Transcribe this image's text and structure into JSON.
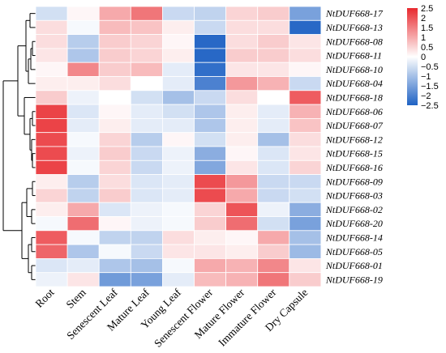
{
  "chart_data": {
    "type": "heatmap",
    "title": "",
    "xlabel": "",
    "ylabel": "",
    "rows": [
      "NtDUF668-17",
      "NtDUF668-13",
      "NtDUF668-08",
      "NtDUF668-11",
      "NtDUF668-10",
      "NtDUF668-04",
      "NtDUF668-18",
      "NtDUF668-06",
      "NtDUF668-07",
      "NtDUF668-12",
      "NtDUF668-15",
      "NtDUF668-16",
      "NtDUF668-09",
      "NtDUF668-03",
      "NtDUF668-02",
      "NtDUF668-20",
      "NtDUF668-14",
      "NtDUF668-05",
      "NtDUF668-01",
      "NtDUF668-19"
    ],
    "columns": [
      "Root",
      "Stem",
      "Senescent Leaf",
      "Mature Leaf",
      "Young Leaf",
      "Senescent Flower",
      "Mature Flower",
      "Immature Flower",
      "Dry Capsule"
    ],
    "values": [
      [
        -0.5,
        0.1,
        1.0,
        1.6,
        -0.6,
        -0.7,
        0.5,
        0.6,
        -1.5
      ],
      [
        0.4,
        -0.1,
        0.8,
        0.7,
        0.2,
        -0.6,
        0.4,
        0.4,
        -2.4
      ],
      [
        0.4,
        -0.8,
        0.6,
        0.5,
        0.1,
        -2.4,
        0.4,
        0.6,
        0.3
      ],
      [
        0.3,
        -0.9,
        0.6,
        0.5,
        0.2,
        -2.4,
        0.6,
        0.6,
        0.4
      ],
      [
        0.1,
        1.4,
        0.6,
        0.8,
        -0.3,
        -2.3,
        0.3,
        0.3,
        0.1
      ],
      [
        0.2,
        0.2,
        0.4,
        0.0,
        -0.3,
        -2.0,
        1.2,
        0.9,
        -0.6
      ],
      [
        0.6,
        -0.2,
        0.0,
        -0.5,
        -1.0,
        -0.6,
        0.4,
        0.0,
        1.9
      ],
      [
        2.2,
        -0.4,
        0.1,
        -0.3,
        -0.5,
        -0.9,
        0.2,
        -0.3,
        0.9
      ],
      [
        2.2,
        -0.3,
        0.2,
        -0.3,
        -0.3,
        -0.9,
        0.2,
        -0.3,
        0.7
      ],
      [
        2.1,
        -0.1,
        0.5,
        -0.8,
        0.1,
        -0.5,
        0.2,
        -1.0,
        0.4
      ],
      [
        2.1,
        -0.2,
        0.6,
        -0.6,
        -0.2,
        -1.3,
        0.1,
        -0.4,
        0.3
      ],
      [
        2.2,
        -0.1,
        0.5,
        -0.6,
        -0.2,
        -1.4,
        0.3,
        -0.4,
        0.5
      ],
      [
        0.2,
        -0.8,
        0.4,
        -0.4,
        -0.3,
        2.1,
        1.2,
        -0.6,
        -0.6
      ],
      [
        0.5,
        -0.7,
        0.6,
        -0.4,
        -0.3,
        2.1,
        1.0,
        -0.6,
        -0.5
      ],
      [
        0.2,
        1.0,
        -0.4,
        -0.2,
        -0.1,
        0.5,
        2.0,
        -0.2,
        -1.3
      ],
      [
        -0.1,
        1.7,
        0.1,
        -0.2,
        -0.1,
        0.6,
        1.7,
        -0.5,
        -1.5
      ],
      [
        1.9,
        -0.1,
        -0.7,
        -0.7,
        0.4,
        0.2,
        0.1,
        1.0,
        -1.0
      ],
      [
        1.8,
        -0.9,
        -0.1,
        -0.6,
        0.3,
        0.3,
        0.2,
        0.6,
        -1.1
      ],
      [
        -0.4,
        -0.3,
        -0.9,
        -1.0,
        -0.1,
        1.0,
        0.9,
        1.4,
        0.3
      ],
      [
        -0.2,
        0.3,
        -1.6,
        -1.5,
        -0.3,
        0.8,
        0.9,
        1.6,
        0.6
      ]
    ],
    "vmin": -2.5,
    "vmax": 2.5,
    "colorbar_ticks": [
      "2.5",
      "2",
      "1.5",
      "1",
      "0.5",
      "0",
      "−0.5",
      "−1",
      "−1.5",
      "−2",
      "−2.5"
    ],
    "colormap": {
      "low": "#1f62c4",
      "mid": "#ffffff",
      "high": "#e8292e"
    },
    "row_dendrogram": true,
    "legend": "colorbar top-right"
  }
}
